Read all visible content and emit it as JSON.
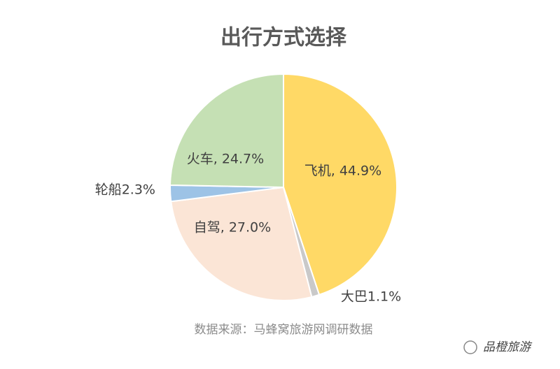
{
  "chart_data": {
    "type": "pie",
    "title": "出行方式选择",
    "values": [
      44.9,
      1.1,
      27.0,
      2.3,
      24.7
    ],
    "value_labels": [
      "飞机, 44.9%",
      "大巴1.1%",
      "自驾, 27.0%",
      "轮船2.3%",
      "火车, 24.7%"
    ],
    "colors": [
      "#ffd966",
      "#c9c9c9",
      "#fbe5d6",
      "#9dc3e6",
      "#c5e0b4"
    ],
    "source": "数据来源：马蜂窝旅游网调研数据",
    "watermark": "品橙旅游"
  }
}
